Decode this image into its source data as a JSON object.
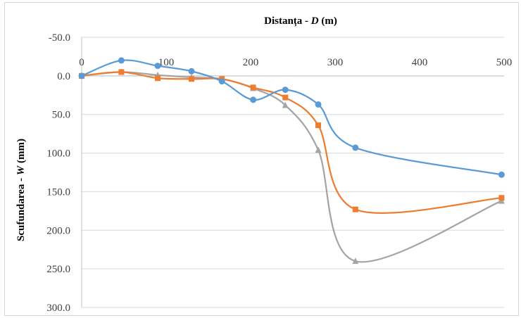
{
  "chart_data": {
    "type": "line",
    "xlabel_parts": [
      "Distanța - ",
      "D",
      " (m)"
    ],
    "ylabel_parts": [
      "Scufundarea - ",
      "W",
      " (mm)"
    ],
    "x_axis_position": "top",
    "y_axis_inverted": true,
    "xlim": [
      0,
      500
    ],
    "ylim": [
      -50,
      300
    ],
    "x_ticks": [
      "0",
      "100",
      "200",
      "300",
      "400",
      "500"
    ],
    "y_ticks": [
      "-50.0",
      "0.0",
      "50.0",
      "100.0",
      "150.0",
      "200.0",
      "250.0",
      "300.0"
    ],
    "grid": "horizontal",
    "legend": "none",
    "series": [
      {
        "color": "#5b9bd5",
        "marker": "circle",
        "x": [
          0,
          47,
          90,
          130,
          166,
          203,
          241,
          280,
          324,
          497
        ],
        "y": [
          0,
          -20,
          -13,
          -6,
          7,
          31,
          18,
          37,
          93,
          128
        ]
      },
      {
        "color": "#ed7d31",
        "marker": "square",
        "x": [
          0,
          47,
          90,
          130,
          166,
          203,
          241,
          280,
          324,
          497
        ],
        "y": [
          0,
          -5,
          3,
          4,
          4,
          15,
          28,
          64,
          173,
          158
        ]
      },
      {
        "color": "#a5a5a5",
        "marker": "triangle",
        "x": [
          0,
          47,
          90,
          130,
          166,
          203,
          241,
          280,
          324,
          497
        ],
        "y": [
          0,
          -5,
          -1,
          2,
          4,
          16,
          38,
          96,
          240,
          162
        ]
      }
    ]
  }
}
